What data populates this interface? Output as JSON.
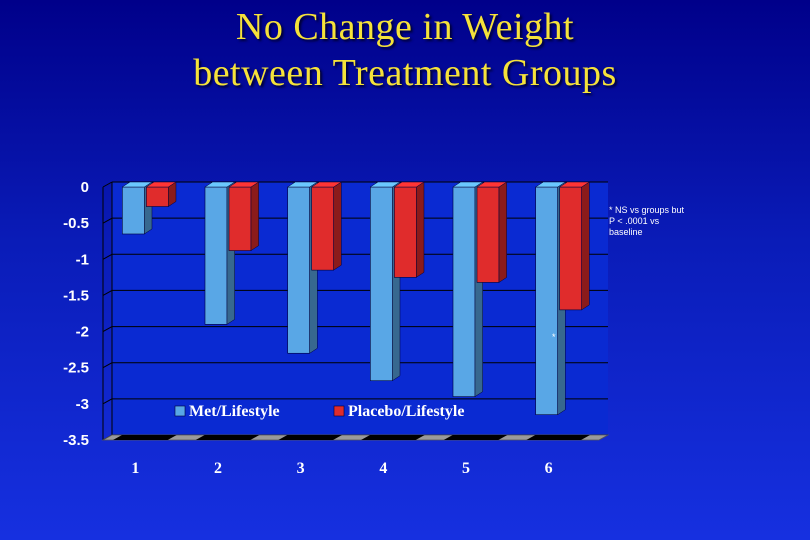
{
  "title": {
    "line1": "No Change in Weight",
    "line2": "between Treatment Groups"
  },
  "colors": {
    "background": "#0a1cb8",
    "title": "#f5e23a",
    "met": "#59a7e6",
    "placebo": "#e02c2c"
  },
  "note": {
    "lines": [
      "* NS vs groups but",
      "P < .0001 vs",
      "baseline"
    ],
    "marker": "*"
  },
  "chart_data": {
    "type": "bar",
    "categories": [
      "1",
      "2",
      "3",
      "4",
      "5",
      "6"
    ],
    "series": [
      {
        "name": "Met/Lifestyle",
        "values": [
          -0.65,
          -1.9,
          -2.3,
          -2.68,
          -2.9,
          -3.15
        ]
      },
      {
        "name": "Placebo/Lifestyle",
        "values": [
          -0.27,
          -0.88,
          -1.15,
          -1.25,
          -1.32,
          -1.7
        ]
      }
    ],
    "y_ticks": [
      "0",
      "-0.5",
      "-1",
      "-1.5",
      "-2",
      "-2.5",
      "-3",
      "-3.5"
    ],
    "ylim": [
      -3.5,
      0
    ],
    "grid": true,
    "legend_position": "bottom",
    "xlabel": "",
    "ylabel": ""
  }
}
